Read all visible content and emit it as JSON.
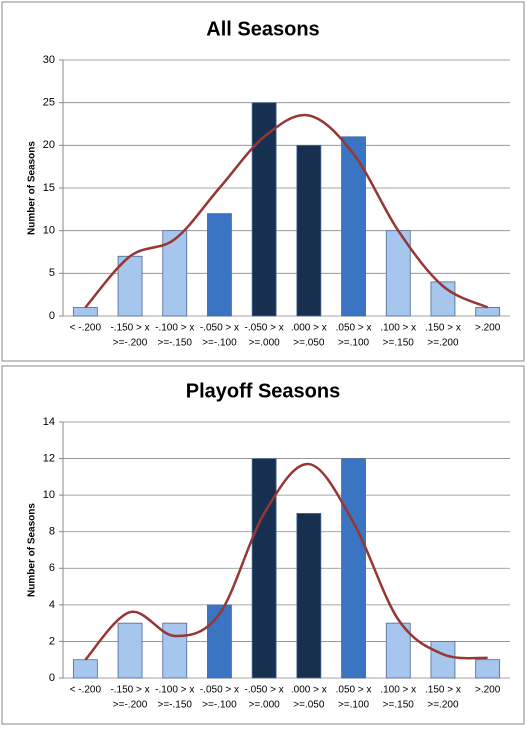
{
  "chart_data": [
    {
      "type": "bar",
      "title": "All Seasons",
      "y_label": "Number of Seasons",
      "categories": [
        [
          "< -.200"
        ],
        [
          "-.150 > x",
          ">=-.200"
        ],
        [
          "-.100 > x",
          ">=-.150"
        ],
        [
          "-.050 > x",
          ">=-.100"
        ],
        [
          "-.050 > x",
          ">=.000"
        ],
        [
          ".000 > x",
          ">=.050"
        ],
        [
          ".050 > x",
          ">=.100"
        ],
        [
          ".100 > x",
          ">=.150"
        ],
        [
          ".150 > x",
          ">=.200"
        ],
        [
          ">.200"
        ]
      ],
      "values": [
        1,
        7,
        10,
        12,
        25,
        20,
        21,
        10,
        4,
        1
      ],
      "colors": [
        "#a7c6ee",
        "#a7c6ee",
        "#a7c6ee",
        "#3b74c2",
        "#17304f",
        "#17304f",
        "#3b74c2",
        "#a7c6ee",
        "#a7c6ee",
        "#a7c6ee"
      ],
      "trend": {
        "color": "#953735",
        "values": [
          1,
          7,
          9,
          15,
          21,
          23.5,
          19,
          10,
          3.5,
          1
        ]
      },
      "ylim": [
        0,
        30
      ],
      "yticks": [
        0,
        5,
        10,
        15,
        20,
        25,
        30
      ],
      "grid": true
    },
    {
      "type": "bar",
      "title": "Playoff Seasons",
      "y_label": "Number of Seasons",
      "categories": [
        [
          "< -.200"
        ],
        [
          "-.150 > x",
          ">=-.200"
        ],
        [
          "-.100 > x",
          ">=-.150"
        ],
        [
          "-.050 > x",
          ">=-.100"
        ],
        [
          "-.050 > x",
          ">=.000"
        ],
        [
          ".000 > x",
          ">=.050"
        ],
        [
          ".050 > x",
          ">=.100"
        ],
        [
          ".100 > x",
          ">=.150"
        ],
        [
          ".150 > x",
          ">=.200"
        ],
        [
          ">.200"
        ]
      ],
      "values": [
        1,
        3,
        3,
        4,
        12,
        9,
        12,
        3,
        2,
        1
      ],
      "colors": [
        "#a7c6ee",
        "#a7c6ee",
        "#a7c6ee",
        "#3b74c2",
        "#17304f",
        "#17304f",
        "#3b74c2",
        "#a7c6ee",
        "#a7c6ee",
        "#a7c6ee"
      ],
      "trend": {
        "color": "#953735",
        "values": [
          1,
          3.6,
          2.3,
          3.5,
          9,
          11.7,
          8.5,
          3.2,
          1.3,
          1.1
        ]
      },
      "ylim": [
        0,
        14
      ],
      "yticks": [
        0,
        2,
        4,
        6,
        8,
        10,
        12,
        14
      ],
      "grid": true
    }
  ]
}
